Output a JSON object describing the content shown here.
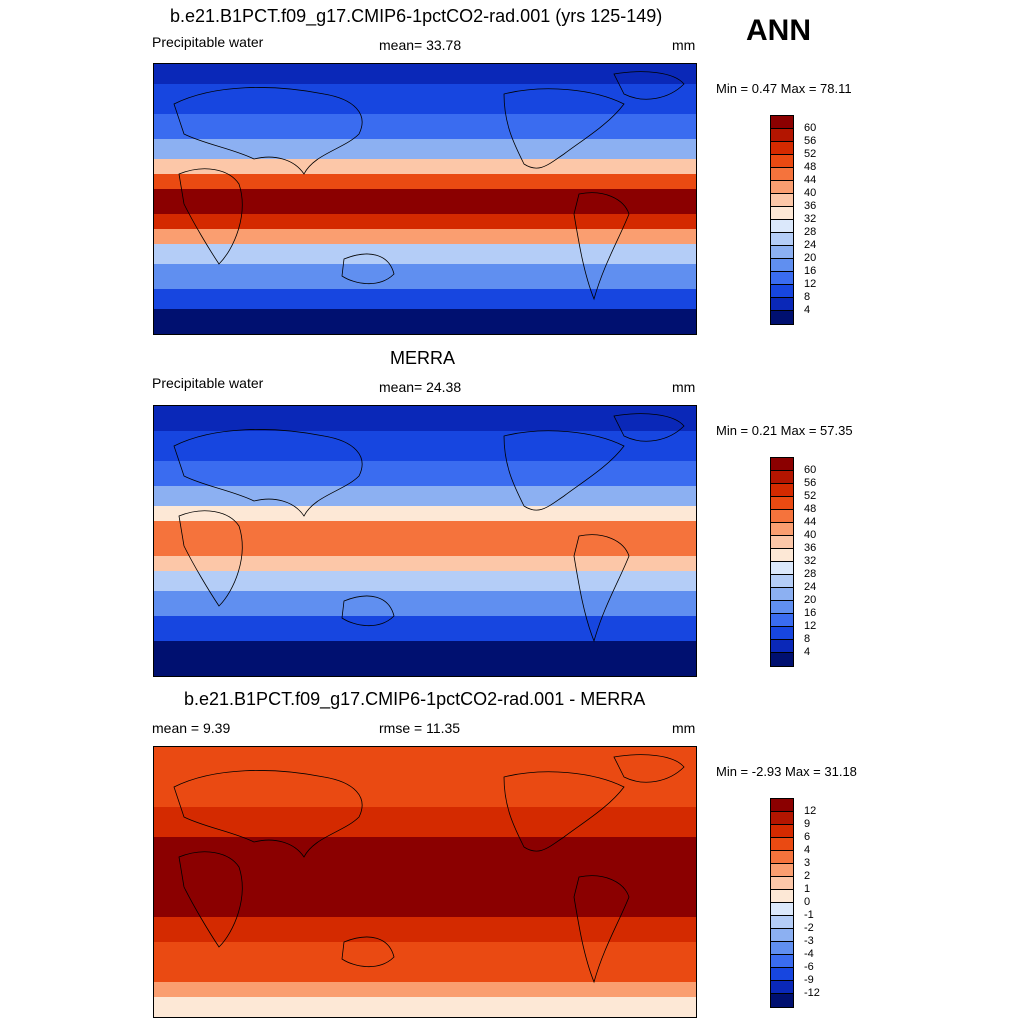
{
  "season": "ANN",
  "panels": [
    {
      "title": "b.e21.B1PCT.f09_g17.CMIP6-1pctCO2-rad.001 (yrs 125-149)",
      "left_label": "Precipitable water",
      "center_label": "mean=  33.78",
      "units": "mm",
      "minmax": "Min =   0.47 Max =  78.11",
      "colorbar_labels": [
        "60",
        "56",
        "52",
        "48",
        "44",
        "40",
        "36",
        "32",
        "28",
        "24",
        "20",
        "16",
        "12",
        "8",
        "4"
      ],
      "colorbar_colors": [
        "#8b0000",
        "#b31500",
        "#d42a00",
        "#ea4a12",
        "#f5733c",
        "#fa9e70",
        "#fcc7a8",
        "#fde8d6",
        "#dbe8fb",
        "#b4cdf7",
        "#8cb0f2",
        "#608ff0",
        "#3a6cf0",
        "#1746e0",
        "#0a28b8",
        "#001070"
      ],
      "map_type": "precip_model"
    },
    {
      "title": "MERRA",
      "left_label": "Precipitable water",
      "center_label": "mean=  24.38",
      "units": "mm",
      "minmax": "Min =   0.21 Max =  57.35",
      "colorbar_labels": [
        "60",
        "56",
        "52",
        "48",
        "44",
        "40",
        "36",
        "32",
        "28",
        "24",
        "20",
        "16",
        "12",
        "8",
        "4"
      ],
      "colorbar_colors": [
        "#8b0000",
        "#b31500",
        "#d42a00",
        "#ea4a12",
        "#f5733c",
        "#fa9e70",
        "#fcc7a8",
        "#fde8d6",
        "#dbe8fb",
        "#b4cdf7",
        "#8cb0f2",
        "#608ff0",
        "#3a6cf0",
        "#1746e0",
        "#0a28b8",
        "#001070"
      ],
      "map_type": "precip_obs"
    },
    {
      "title": "b.e21.B1PCT.f09_g17.CMIP6-1pctCO2-rad.001 - MERRA",
      "left_label": "mean =   9.39",
      "center_label": "rmse =  11.35",
      "units": "mm",
      "minmax": "Min =  -2.93 Max =  31.18",
      "colorbar_labels": [
        "12",
        "9",
        "6",
        "4",
        "3",
        "2",
        "1",
        "0",
        "-1",
        "-2",
        "-3",
        "-4",
        "-6",
        "-9",
        "-12"
      ],
      "colorbar_colors": [
        "#8b0000",
        "#b31500",
        "#d42a00",
        "#ea4a12",
        "#f5733c",
        "#fa9e70",
        "#fcc7a8",
        "#fde8d6",
        "#dbe8fb",
        "#b4cdf7",
        "#8cb0f2",
        "#608ff0",
        "#3a6cf0",
        "#1746e0",
        "#0a28b8",
        "#001070"
      ],
      "map_type": "diff"
    }
  ]
}
